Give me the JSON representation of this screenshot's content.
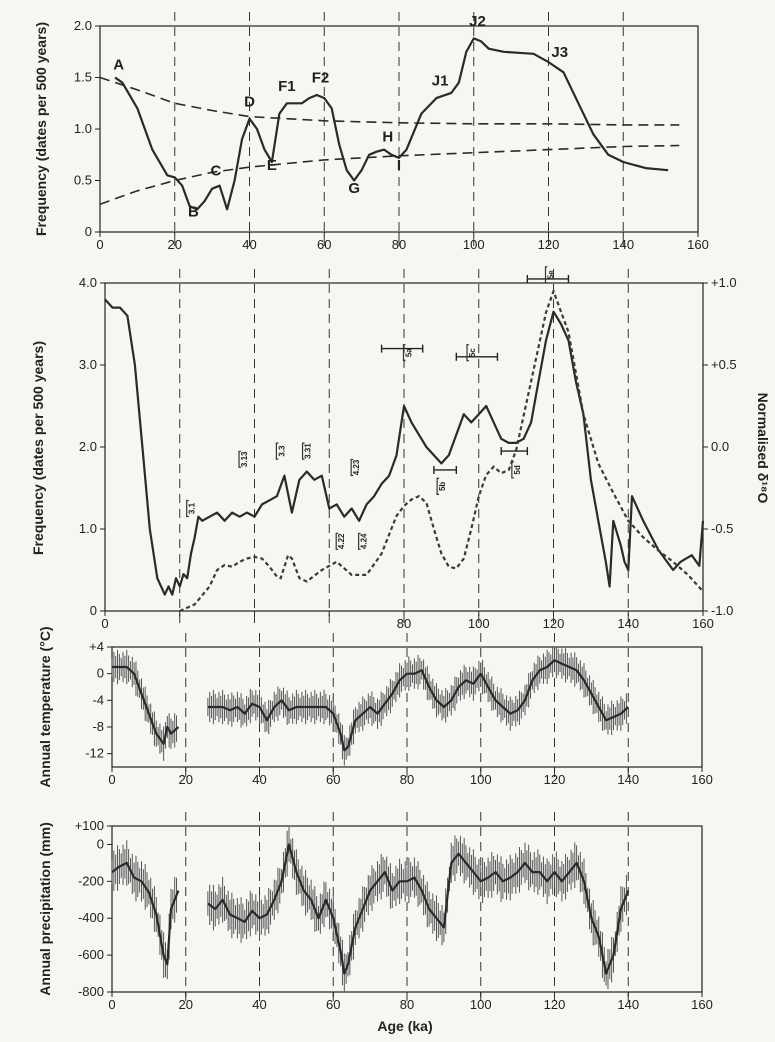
{
  "figure": {
    "x_axis_title": "Age (ka)"
  },
  "chart_data": [
    {
      "type": "line",
      "panel": "frequency-luminescence",
      "ylabel": "Frequency (dates per 500 years)",
      "xlim": [
        0,
        160
      ],
      "ylim": [
        0,
        2.0
      ],
      "x_ticks": [
        "0",
        "20",
        "40",
        "60",
        "80",
        "100",
        "120",
        "140",
        "160"
      ],
      "y_ticks": [
        "0",
        "0.5",
        "1.0",
        "1.5",
        "2.0"
      ],
      "reference_lines_x": [
        20,
        40,
        60,
        80,
        100,
        120,
        140
      ],
      "series": [
        {
          "role": "frequency",
          "style": "solid",
          "x": [
            4,
            6,
            10,
            14,
            18,
            20,
            22,
            24,
            26,
            28,
            30,
            32,
            34,
            36,
            38,
            40,
            42,
            44,
            46,
            48,
            50,
            52,
            54,
            56,
            58,
            60,
            62,
            64,
            66,
            68,
            70,
            72,
            74,
            76,
            78,
            80,
            82,
            86,
            90,
            94,
            96,
            98,
            100,
            102,
            104,
            108,
            112,
            116,
            120,
            124,
            128,
            132,
            136,
            140,
            146,
            152
          ],
          "y": [
            1.5,
            1.45,
            1.2,
            0.8,
            0.55,
            0.53,
            0.45,
            0.25,
            0.22,
            0.3,
            0.42,
            0.45,
            0.22,
            0.5,
            0.9,
            1.1,
            1.0,
            0.8,
            0.68,
            1.15,
            1.25,
            1.25,
            1.25,
            1.3,
            1.33,
            1.3,
            1.2,
            0.85,
            0.6,
            0.5,
            0.6,
            0.75,
            0.78,
            0.8,
            0.75,
            0.72,
            0.8,
            1.15,
            1.3,
            1.35,
            1.45,
            1.75,
            1.88,
            1.85,
            1.78,
            1.75,
            1.74,
            1.73,
            1.65,
            1.55,
            1.25,
            0.95,
            0.75,
            0.68,
            0.62,
            0.6
          ]
        },
        {
          "role": "upper-envelope",
          "style": "dashed",
          "x": [
            0,
            10,
            20,
            30,
            40,
            60,
            80,
            100,
            120,
            140,
            155
          ],
          "y": [
            1.5,
            1.38,
            1.25,
            1.18,
            1.12,
            1.08,
            1.06,
            1.05,
            1.05,
            1.04,
            1.04
          ]
        },
        {
          "role": "lower-envelope",
          "style": "dashed",
          "x": [
            0,
            10,
            20,
            30,
            40,
            60,
            80,
            100,
            120,
            140,
            155
          ],
          "y": [
            0.27,
            0.4,
            0.5,
            0.58,
            0.63,
            0.7,
            0.74,
            0.77,
            0.8,
            0.83,
            0.84
          ]
        }
      ],
      "annotations": [
        {
          "label": "A",
          "x": 5,
          "y": 1.58
        },
        {
          "label": "B",
          "x": 25,
          "y": 0.15
        },
        {
          "label": "C",
          "x": 31,
          "y": 0.55
        },
        {
          "label": "D",
          "x": 40,
          "y": 1.22
        },
        {
          "label": "E",
          "x": 46,
          "y": 0.6
        },
        {
          "label": "F1",
          "x": 50,
          "y": 1.37
        },
        {
          "label": "F2",
          "x": 59,
          "y": 1.45
        },
        {
          "label": "G",
          "x": 68,
          "y": 0.38
        },
        {
          "label": "H",
          "x": 77,
          "y": 0.88
        },
        {
          "label": "I",
          "x": 80,
          "y": 0.6
        },
        {
          "label": "J1",
          "x": 91,
          "y": 1.42
        },
        {
          "label": "J2",
          "x": 101,
          "y": 2.0
        },
        {
          "label": "J3",
          "x": 123,
          "y": 1.7
        }
      ]
    },
    {
      "type": "line",
      "panel": "frequency-isotope",
      "ylabel": "Frequency (dates per 500 years)",
      "y2label": "Normalised δ¹⁸O",
      "xlim": [
        0,
        160
      ],
      "ylim": [
        0,
        4.0
      ],
      "y2lim": [
        -1.0,
        1.0
      ],
      "x_ticks": [
        "0",
        "20",
        "40",
        "60",
        "80",
        "100",
        "120",
        "140",
        "160"
      ],
      "x_ticks_shown": [
        "0",
        "80",
        "100",
        "120",
        "140",
        "160"
      ],
      "y_ticks": [
        "0",
        "1.0",
        "2.0",
        "3.0",
        "4.0"
      ],
      "y2_ticks": [
        "-1.0",
        "-0.5",
        "0.0",
        "+0.5",
        "+1.0"
      ],
      "reference_lines_x": [
        20,
        40,
        60,
        80,
        100,
        120,
        140
      ],
      "series": [
        {
          "role": "frequency",
          "style": "solid",
          "x": [
            0,
            2,
            4,
            6,
            8,
            10,
            12,
            14,
            16,
            17,
            18,
            19,
            20,
            21,
            22,
            23,
            24,
            25,
            26,
            28,
            30,
            32,
            34,
            36,
            38,
            40,
            42,
            44,
            46,
            48,
            50,
            52,
            54,
            56,
            58,
            60,
            62,
            64,
            66,
            68,
            70,
            72,
            74,
            76,
            78,
            80,
            82,
            84,
            86,
            88,
            90,
            92,
            94,
            96,
            98,
            100,
            102,
            104,
            106,
            108,
            110,
            112,
            114,
            116,
            118,
            120,
            122,
            124,
            126,
            128,
            130,
            132,
            134,
            135,
            136,
            138,
            139,
            140,
            141,
            144,
            148,
            152,
            154,
            157,
            159,
            160
          ],
          "y": [
            3.8,
            3.7,
            3.7,
            3.6,
            3.0,
            2.0,
            1.0,
            0.4,
            0.2,
            0.3,
            0.2,
            0.4,
            0.3,
            0.45,
            0.4,
            0.7,
            0.9,
            1.15,
            1.1,
            1.15,
            1.2,
            1.1,
            1.2,
            1.15,
            1.2,
            1.15,
            1.3,
            1.35,
            1.4,
            1.65,
            1.2,
            1.6,
            1.7,
            1.6,
            1.65,
            1.25,
            1.3,
            1.15,
            1.25,
            1.1,
            1.3,
            1.4,
            1.55,
            1.65,
            1.9,
            2.5,
            2.3,
            2.15,
            2.0,
            1.9,
            1.8,
            1.9,
            2.15,
            2.4,
            2.3,
            2.4,
            2.5,
            2.3,
            2.1,
            2.05,
            2.05,
            2.1,
            2.3,
            2.8,
            3.3,
            3.65,
            3.5,
            3.3,
            2.8,
            2.4,
            1.6,
            1.1,
            0.6,
            0.3,
            1.1,
            0.8,
            0.6,
            0.5,
            1.4,
            1.1,
            0.75,
            0.5,
            0.6,
            0.68,
            0.55,
            1.1
          ]
        },
        {
          "role": "normalised-d18O",
          "style": "dotted",
          "axis": "right",
          "x": [
            20,
            24,
            28,
            30,
            32,
            34,
            36,
            38,
            40,
            42,
            44,
            46,
            47,
            49,
            50,
            52,
            54,
            58,
            62,
            66,
            70,
            74,
            78,
            80,
            82,
            84,
            86,
            88,
            90,
            92,
            94,
            96,
            98,
            100,
            102,
            104,
            106,
            108,
            110,
            114,
            118,
            120,
            124,
            128,
            132,
            136,
            140,
            144,
            148,
            152,
            156,
            160
          ],
          "y": [
            -1.0,
            -0.96,
            -0.85,
            -0.75,
            -0.72,
            -0.73,
            -0.7,
            -0.68,
            -0.67,
            -0.68,
            -0.73,
            -0.79,
            -0.8,
            -0.66,
            -0.68,
            -0.8,
            -0.82,
            -0.75,
            -0.7,
            -0.78,
            -0.78,
            -0.65,
            -0.42,
            -0.36,
            -0.32,
            -0.3,
            -0.34,
            -0.5,
            -0.65,
            -0.73,
            -0.74,
            -0.68,
            -0.5,
            -0.3,
            -0.17,
            -0.12,
            -0.16,
            -0.14,
            -0.02,
            0.4,
            0.82,
            0.95,
            0.7,
            0.2,
            -0.1,
            -0.28,
            -0.45,
            -0.55,
            -0.63,
            -0.7,
            -0.78,
            -0.88
          ]
        }
      ],
      "stage_annotations": [
        {
          "label": "3.1",
          "x": 24,
          "y": 1.25
        },
        {
          "label": "3.13",
          "x": 38,
          "y": 1.85
        },
        {
          "label": "3.3",
          "x": 48,
          "y": 1.95
        },
        {
          "label": "3.31",
          "x": 55,
          "y": 1.95
        },
        {
          "label": "4.23",
          "x": 68,
          "y": 1.75
        },
        {
          "label": "4.22",
          "x": 64,
          "y": 0.85
        },
        {
          "label": "4.24",
          "x": 70,
          "y": 0.85
        },
        {
          "label": "5a",
          "x": 82,
          "y": 3.15
        },
        {
          "label": "5b",
          "x": 91,
          "y": 1.52
        },
        {
          "label": "5c",
          "x": 99,
          "y": 3.15
        },
        {
          "label": "5d",
          "x": 111,
          "y": 1.72
        },
        {
          "label": "5e",
          "x": 120,
          "y": 4.1
        }
      ],
      "stage_ranges": [
        {
          "label": "5a",
          "x": [
            74,
            85
          ],
          "y": 3.2
        },
        {
          "label": "5b",
          "x": [
            88,
            94
          ],
          "y": 1.72
        },
        {
          "label": "5c",
          "x": [
            94,
            105
          ],
          "y": 3.1
        },
        {
          "label": "5d",
          "x": [
            106,
            113
          ],
          "y": 1.95
        },
        {
          "label": "5e",
          "x": [
            113,
            124
          ],
          "y": 4.05
        }
      ]
    },
    {
      "type": "line",
      "panel": "annual-temperature",
      "ylabel": "Annual temperature (°C)",
      "xlim": [
        0,
        160
      ],
      "ylim": [
        -14,
        4
      ],
      "x_ticks": [
        "0",
        "20",
        "40",
        "60",
        "80",
        "100",
        "120",
        "140",
        "160"
      ],
      "y_ticks": [
        "-12",
        "-8",
        "-4",
        "0",
        "+4"
      ],
      "reference_lines_x": [
        20,
        40,
        60,
        80,
        100,
        120,
        140
      ],
      "error_bar_halfwidth": 2.5,
      "segments": [
        {
          "x": [
            0,
            2,
            4,
            6,
            8,
            10,
            12,
            14,
            15,
            16,
            18
          ],
          "y": [
            1,
            1,
            1,
            0,
            -3,
            -6,
            -9,
            -10.5,
            -8,
            -9,
            -8
          ]
        },
        {
          "x": [
            26,
            28,
            30,
            32,
            34,
            36,
            38,
            40,
            42,
            44,
            46,
            48,
            50,
            52,
            54,
            56,
            58,
            60,
            62,
            63,
            64,
            66,
            68,
            70,
            72,
            74,
            76,
            78,
            80,
            82,
            84,
            86,
            88,
            90,
            92,
            94,
            96,
            98,
            100,
            102,
            104,
            106,
            108,
            110,
            112,
            114,
            116,
            118,
            120,
            122,
            124,
            126,
            128,
            130,
            132,
            134,
            136,
            138,
            140
          ],
          "y": [
            -5,
            -5,
            -5,
            -5.5,
            -5,
            -6,
            -4.5,
            -5,
            -7,
            -5,
            -4,
            -5.5,
            -5,
            -5,
            -5,
            -5,
            -5,
            -6,
            -9,
            -11.5,
            -11,
            -7,
            -6,
            -5,
            -6,
            -4.5,
            -3,
            -1,
            0,
            0,
            0.5,
            -2,
            -4,
            -5,
            -4,
            -2,
            -1,
            -1.5,
            0,
            -2,
            -4,
            -5,
            -6,
            -5.5,
            -4,
            -1,
            0.5,
            1,
            2,
            1.5,
            1,
            0.5,
            -1,
            -3,
            -5,
            -7,
            -6.5,
            -6,
            -5
          ]
        }
      ]
    },
    {
      "type": "line",
      "panel": "annual-precipitation",
      "ylabel": "Annual precipitation (mm)",
      "xlabel": "Age (ka)",
      "xlim": [
        0,
        160
      ],
      "ylim": [
        -800,
        100
      ],
      "x_ticks": [
        "0",
        "20",
        "40",
        "60",
        "80",
        "100",
        "120",
        "140",
        "160"
      ],
      "y_ticks": [
        "-800",
        "-600",
        "-400",
        "-200",
        "0",
        "+100"
      ],
      "reference_lines_x": [
        20,
        40,
        60,
        80,
        100,
        120,
        140
      ],
      "error_bar_halfwidth": 120,
      "segments": [
        {
          "x": [
            0,
            2,
            4,
            6,
            8,
            10,
            12,
            14,
            15,
            16,
            18
          ],
          "y": [
            -150,
            -120,
            -100,
            -180,
            -200,
            -260,
            -380,
            -600,
            -650,
            -350,
            -250
          ]
        },
        {
          "x": [
            26,
            28,
            30,
            32,
            34,
            36,
            38,
            40,
            42,
            44,
            46,
            48,
            50,
            52,
            54,
            56,
            58,
            60,
            62,
            63,
            64,
            66,
            68,
            70,
            72,
            74,
            76,
            78,
            80,
            82,
            84,
            86,
            88,
            90,
            92,
            94,
            96,
            98,
            100,
            102,
            104,
            106,
            108,
            110,
            112,
            114,
            116,
            118,
            120,
            122,
            124,
            126,
            128,
            130,
            132,
            134,
            136,
            138,
            140
          ],
          "y": [
            -320,
            -350,
            -300,
            -380,
            -400,
            -420,
            -360,
            -400,
            -380,
            -300,
            -200,
            0,
            -150,
            -250,
            -300,
            -400,
            -300,
            -400,
            -580,
            -700,
            -650,
            -450,
            -350,
            -250,
            -200,
            -150,
            -250,
            -200,
            -200,
            -180,
            -250,
            -350,
            -400,
            -450,
            -100,
            -50,
            -100,
            -150,
            -200,
            -180,
            -150,
            -200,
            -180,
            -150,
            -100,
            -150,
            -150,
            -200,
            -150,
            -200,
            -150,
            -100,
            -200,
            -400,
            -500,
            -700,
            -600,
            -350,
            -250
          ]
        }
      ]
    }
  ]
}
